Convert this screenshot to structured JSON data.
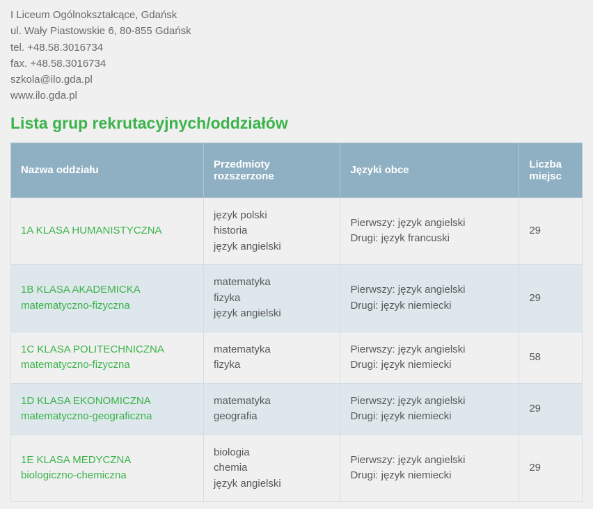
{
  "contact": {
    "name": "I Liceum Ogólnokształcące, Gdańsk",
    "address": "ul. Wały Piastowskie 6, 80-855 Gdańsk",
    "tel": "tel. +48.58.3016734",
    "fax": "fax. +48.58.3016734",
    "email": "szkola@ilo.gda.pl",
    "www": "www.ilo.gda.pl"
  },
  "heading": "Lista grup rekrutacyjnych/oddziałów",
  "table": {
    "headers": {
      "name": "Nazwa oddziału",
      "subjects": "Przedmioty rozszerzone",
      "languages": "Języki obce",
      "seats": "Liczba miejsc"
    },
    "rows": [
      {
        "name_main": "1A KLASA HUMANISTYCZNA",
        "name_sub": "",
        "subjects": "język polski\nhistoria\njęzyk angielski",
        "languages": "Pierwszy: język angielski\nDrugi: język francuski",
        "seats": "29"
      },
      {
        "name_main": "1B KLASA AKADEMICKA",
        "name_sub": "matematyczno-fizyczna",
        "subjects": "matematyka\nfizyka\njęzyk angielski",
        "languages": "Pierwszy: język angielski\nDrugi: język niemiecki",
        "seats": "29"
      },
      {
        "name_main": "1C KLASA POLITECHNICZNA",
        "name_sub": "matematyczno-fizyczna",
        "subjects": "matematyka\nfizyka",
        "languages": "Pierwszy: język angielski\nDrugi: język niemiecki",
        "seats": "58"
      },
      {
        "name_main": "1D KLASA EKONOMICZNA",
        "name_sub": "matematyczno-geograficzna",
        "subjects": "matematyka\ngeografia",
        "languages": "Pierwszy: język angielski\nDrugi: język niemiecki",
        "seats": "29"
      },
      {
        "name_main": "1E KLASA MEDYCZNA",
        "name_sub": "biologiczno-chemiczna",
        "subjects": "biologia\nchemia\njęzyk angielski",
        "languages": "Pierwszy: język angielski\nDrugi: język niemiecki",
        "seats": "29"
      }
    ]
  }
}
